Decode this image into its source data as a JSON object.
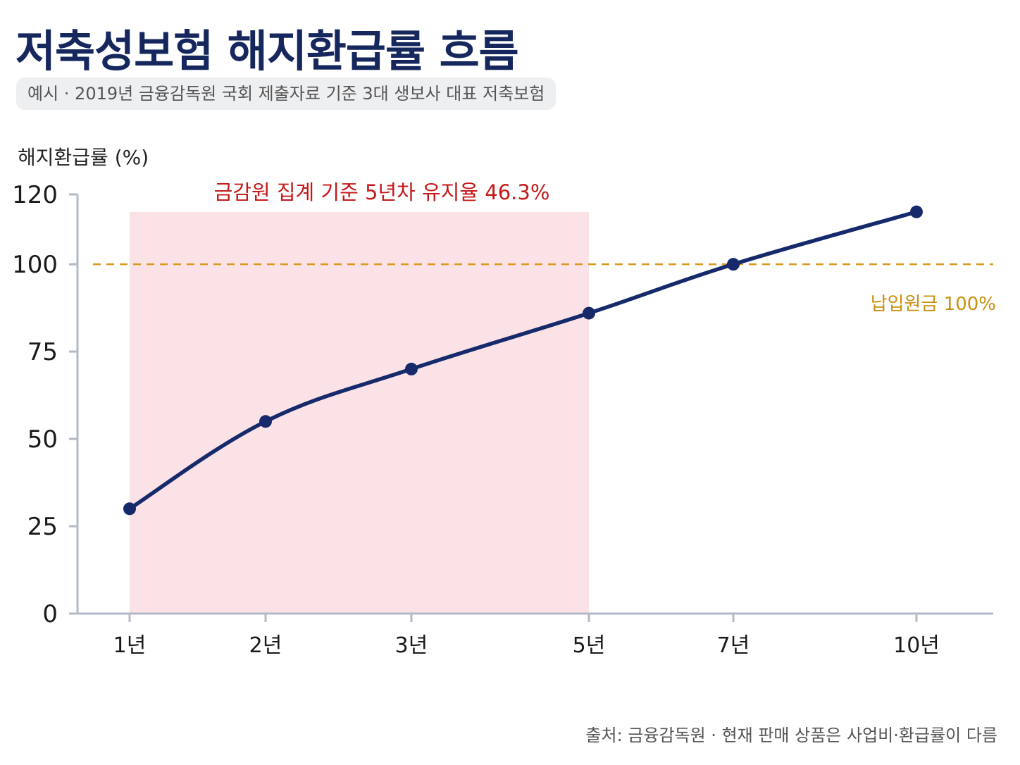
{
  "title": "저축성보험 해지환급률 흐름",
  "subtitle": "예시 · 2019년 금융감독원 국회 제출자료 기준 3대 생보사 대표 저축보험",
  "source": "출처: 금융감독원 · 현재 판매 상품은 사업비·환급률이 다름",
  "colors": {
    "line": "#15296b",
    "reference": "#d99a1e",
    "highlight": "#fbe2e6",
    "axis": "#b3b9c6",
    "annotation_red": "#c41a1a",
    "annotation_gold": "#c8900e"
  },
  "chart_data": {
    "type": "line",
    "ylabel": "해지환급률 (%)",
    "xlabel": "",
    "categories": [
      "1년",
      "2년",
      "3년",
      "5년",
      "7년",
      "10년"
    ],
    "x": [
      1,
      2,
      3,
      5,
      7,
      10
    ],
    "values": [
      30,
      55,
      70,
      86,
      100,
      115
    ],
    "ylim": [
      0,
      120
    ],
    "yticks": [
      0,
      25,
      50,
      75,
      100,
      120
    ],
    "grid": false,
    "reference_line": {
      "y": 100,
      "label": "납입원금 100%"
    },
    "highlight_region": {
      "x_from": "1년",
      "x_to": "5년",
      "label": "금감원 집계 기준 5년차 유지율 46.3%"
    }
  }
}
